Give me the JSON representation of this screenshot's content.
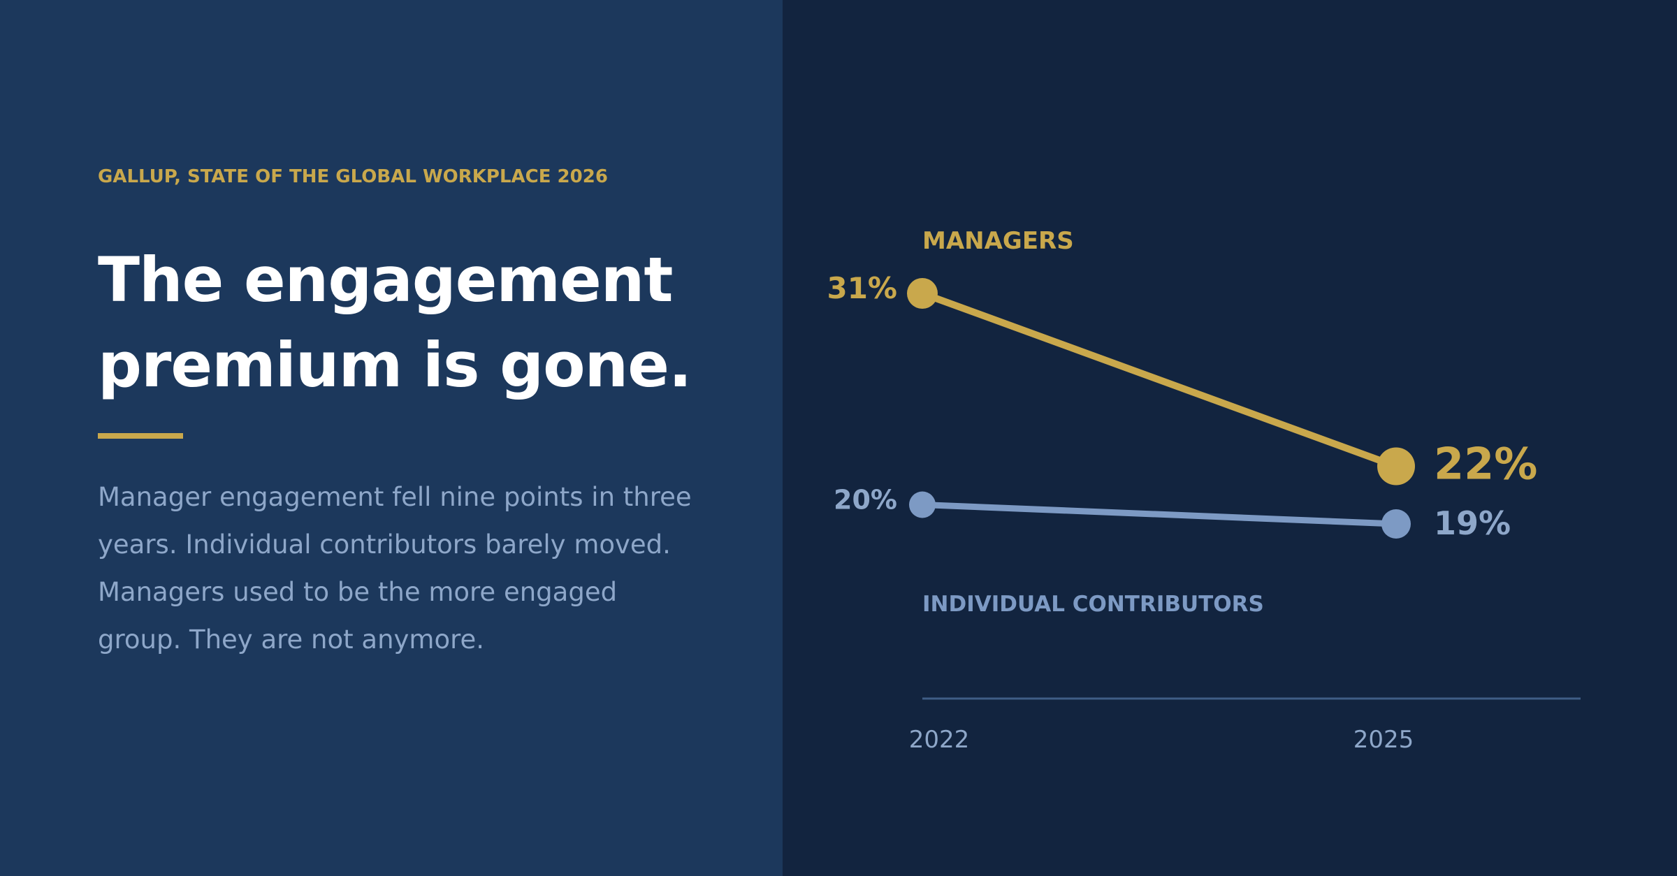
{
  "panel": {
    "source": "GALLUP, STATE OF THE GLOBAL WORKPLACE 2026",
    "headline_line1": "The engagement",
    "headline_line2": "premium is gone.",
    "body": "Manager engagement fell nine points in three years. Individual contributors barely moved. Managers used to be the more engaged group. They are not anymore."
  },
  "colors": {
    "left_background": "#1c385c",
    "right_background": "#12243f",
    "managers": "#c9a84c",
    "contributors": "#7d9ac4",
    "headline": "#ffffff",
    "body": "#8ea7c9",
    "axis": "#3f5d86",
    "tick": "#8ea7c9"
  },
  "chart_data": {
    "type": "line",
    "x": [
      "2022",
      "2025"
    ],
    "ylim": [
      15,
      35
    ],
    "grid": false,
    "legend": "inline labels",
    "series": [
      {
        "name": "MANAGERS",
        "values": [
          31,
          22
        ],
        "labels": [
          "31%",
          "22%"
        ],
        "color": "#c9a84c"
      },
      {
        "name": "INDIVIDUAL CONTRIBUTORS",
        "values": [
          20,
          19
        ],
        "labels": [
          "20%",
          "19%"
        ],
        "color": "#7d9ac4"
      }
    ]
  }
}
